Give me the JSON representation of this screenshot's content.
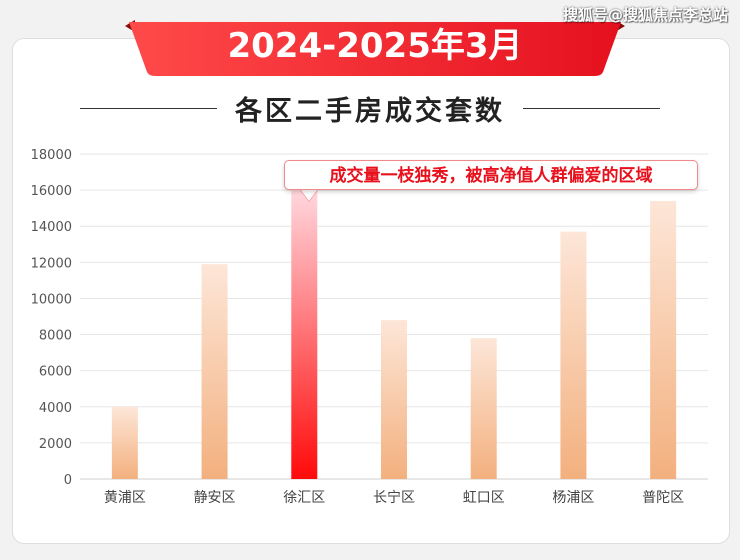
{
  "watermark": "搜狐号@搜狐焦点李总站",
  "banner": {
    "title": "2024-2025年3月"
  },
  "subtitle": "各区二手房成交套数",
  "annotation": "成交量一枝独秀，被高净值人群偏爱的区域",
  "colors": {
    "banner_start": "#ff4a4a",
    "banner_end": "#e5101e",
    "bar_top": "#fde6d8",
    "bar_bottom": "#f3b07e",
    "highlight_top": "#ffd9df",
    "highlight_bottom": "#ff0a0a",
    "grid": "#e6e6e6",
    "axis_text": "#555555"
  },
  "chart_data": {
    "type": "bar",
    "categories": [
      "黄浦区",
      "静安区",
      "徐汇区",
      "长宁区",
      "虹口区",
      "杨浦区",
      "普陀区"
    ],
    "values": [
      4000,
      11900,
      16100,
      8800,
      7800,
      13700,
      15400
    ],
    "highlight": "徐汇区",
    "yticks": [
      0,
      2000,
      4000,
      6000,
      8000,
      10000,
      12000,
      14000,
      16000,
      18000
    ],
    "ylim": [
      0,
      18000
    ],
    "grid": true,
    "legend": "none"
  }
}
